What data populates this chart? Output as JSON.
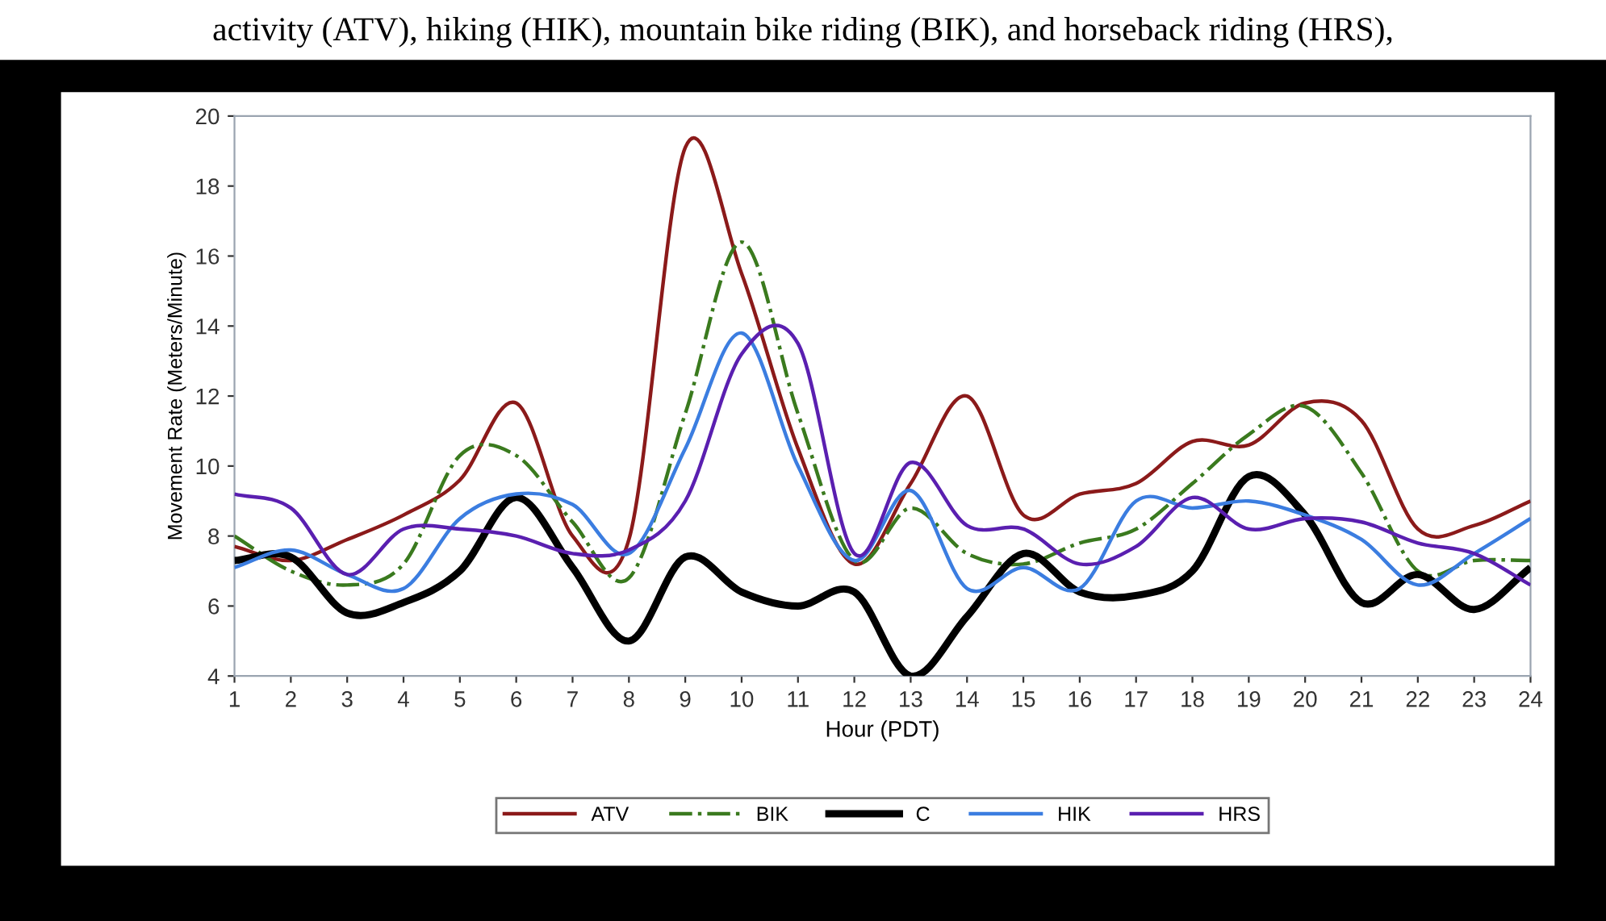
{
  "chart_data": {
    "type": "line",
    "xlabel": "Hour (PDT)",
    "ylabel": "Movement Rate (Meters/Minute)",
    "annotations": [
      "activity (ATV), hiking (HIK), mountain bike riding (BIK), and horseback riding (HRS),"
    ],
    "x": [
      1,
      2,
      3,
      4,
      5,
      6,
      7,
      8,
      9,
      10,
      11,
      12,
      13,
      14,
      15,
      16,
      17,
      18,
      19,
      20,
      21,
      22,
      23,
      24
    ],
    "xlim": [
      1,
      24
    ],
    "xticks": [
      1,
      2,
      3,
      4,
      5,
      6,
      7,
      8,
      9,
      10,
      11,
      12,
      13,
      14,
      15,
      16,
      17,
      18,
      19,
      20,
      21,
      22,
      23,
      24
    ],
    "ylim": [
      4,
      20
    ],
    "yticks": [
      4,
      6,
      8,
      10,
      12,
      14,
      16,
      18,
      20
    ],
    "grid": false,
    "legend": "bottom",
    "marker": "none",
    "series": [
      {
        "name": "ATV",
        "color": "#8b1a1a",
        "line_style": "solid",
        "values": [
          7.7,
          7.3,
          7.9,
          8.6,
          9.6,
          11.8,
          8.0,
          7.9,
          19.1,
          15.5,
          10.5,
          7.2,
          9.5,
          12.0,
          8.6,
          9.2,
          9.5,
          10.7,
          10.6,
          11.8,
          11.3,
          8.2,
          8.3,
          9.0
        ]
      },
      {
        "name": "BIK",
        "color": "#3a7a1e",
        "line_style": "dashdot",
        "values": [
          8.0,
          7.0,
          6.6,
          7.2,
          10.3,
          10.3,
          8.4,
          6.8,
          11.5,
          16.4,
          11.5,
          7.3,
          8.8,
          7.5,
          7.2,
          7.8,
          8.2,
          9.5,
          10.9,
          11.7,
          9.8,
          7.0,
          7.3,
          7.3
        ]
      },
      {
        "name": "C",
        "color": "#000000",
        "line_style": "solid",
        "values": [
          7.3,
          7.4,
          5.8,
          6.1,
          7.0,
          9.1,
          7.1,
          5.0,
          7.4,
          6.4,
          6.0,
          6.4,
          4.0,
          5.7,
          7.5,
          6.4,
          6.3,
          7.0,
          9.7,
          8.6,
          6.1,
          6.9,
          5.9,
          7.1
        ]
      },
      {
        "name": "HIK",
        "color": "#3b7de0",
        "line_style": "solid",
        "values": [
          7.1,
          7.6,
          6.9,
          6.5,
          8.5,
          9.2,
          8.9,
          7.5,
          10.5,
          13.8,
          10.0,
          7.3,
          9.3,
          6.5,
          7.1,
          6.5,
          9.0,
          8.8,
          9.0,
          8.6,
          7.9,
          6.6,
          7.5,
          8.5
        ]
      },
      {
        "name": "HRS",
        "color": "#5a1fb0",
        "line_style": "solid",
        "values": [
          9.2,
          8.8,
          6.9,
          8.2,
          8.2,
          8.0,
          7.5,
          7.6,
          9.0,
          13.2,
          13.5,
          7.5,
          10.1,
          8.3,
          8.2,
          7.2,
          7.7,
          9.1,
          8.2,
          8.5,
          8.4,
          7.8,
          7.5,
          6.6
        ]
      }
    ]
  }
}
